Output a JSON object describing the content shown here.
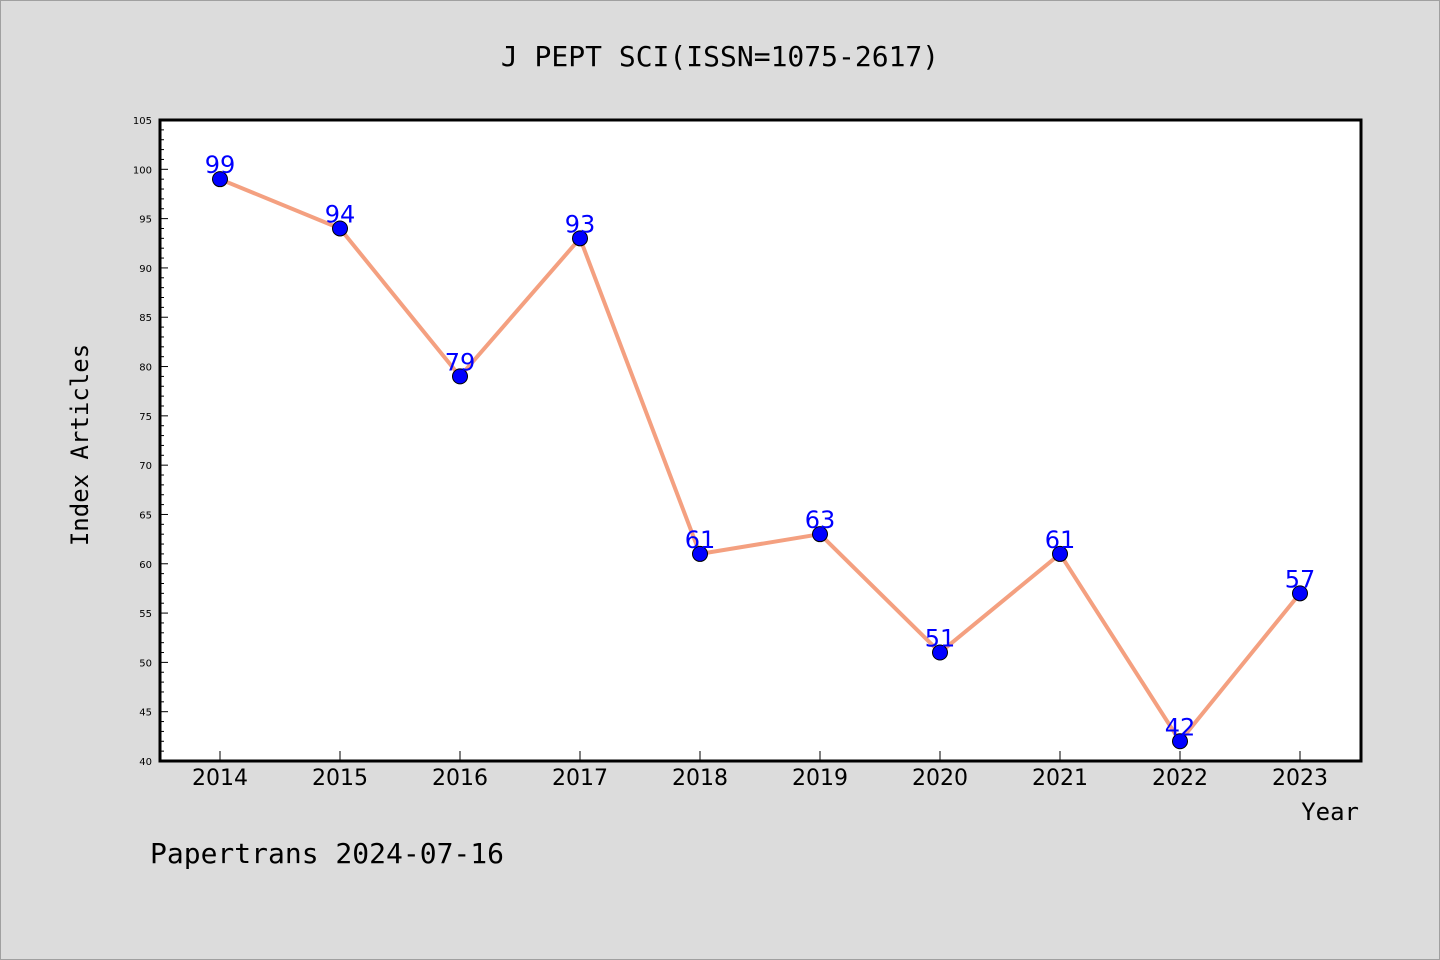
{
  "chart_data": {
    "type": "line",
    "title": "J PEPT SCI(ISSN=1075-2617)",
    "xlabel": "Year",
    "ylabel": "Index Articles",
    "categories": [
      "2014",
      "2015",
      "2016",
      "2017",
      "2018",
      "2019",
      "2020",
      "2021",
      "2022",
      "2023"
    ],
    "values": [
      99,
      94,
      79,
      93,
      61,
      63,
      51,
      61,
      42,
      57
    ],
    "ylim": [
      40,
      105
    ],
    "yticks": [
      40,
      45,
      50,
      55,
      60,
      65,
      70,
      75,
      80,
      85,
      90,
      95,
      100,
      105
    ],
    "line_color": "#f4a080",
    "marker_color": "#0000ff",
    "label_color": "#0000ff",
    "grid": false,
    "legend": "none"
  },
  "footer": {
    "text": "Papertrans 2024-07-16"
  }
}
